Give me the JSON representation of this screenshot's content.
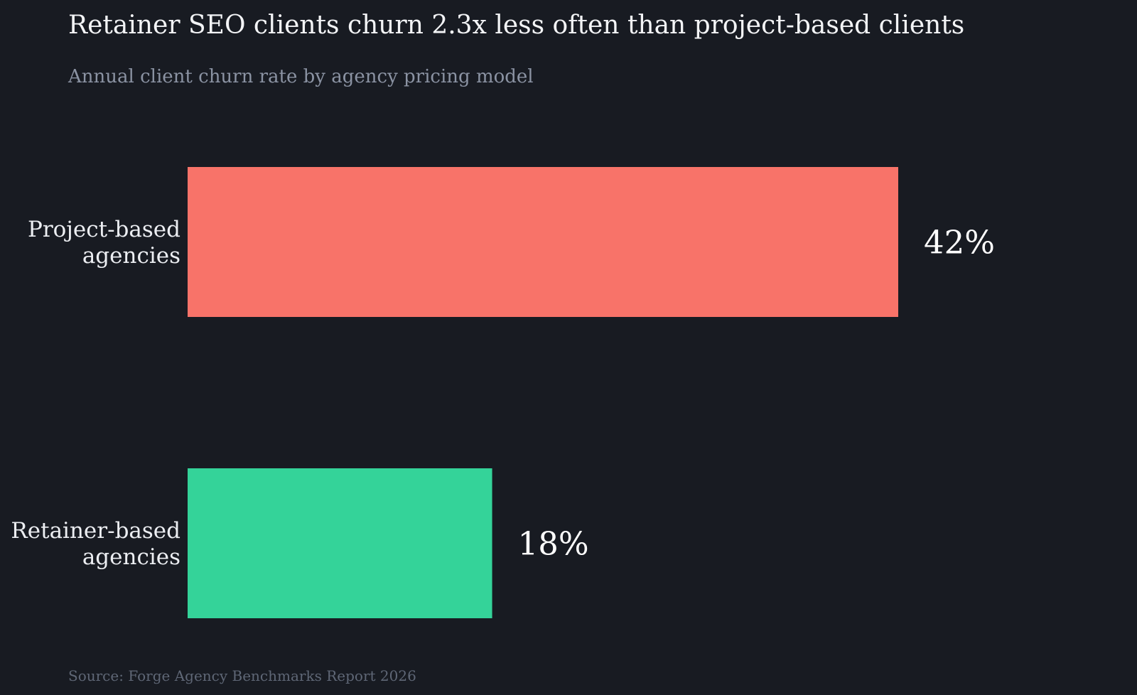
{
  "chart_data": {
    "type": "bar",
    "orientation": "horizontal",
    "title": "Retainer SEO clients churn 2.3x less often than project-based clients",
    "subtitle": "Annual client churn rate by agency pricing model",
    "categories": [
      [
        "Project-based",
        "agencies"
      ],
      [
        "Retainer-based",
        "agencies"
      ]
    ],
    "values": [
      42,
      18
    ],
    "value_labels": [
      "42%",
      "18%"
    ],
    "colors": [
      "#f87369",
      "#34d399"
    ],
    "xlim": [
      0,
      42
    ],
    "grid": false,
    "source": "Source: Forge Agency Benchmarks Report 2026"
  }
}
